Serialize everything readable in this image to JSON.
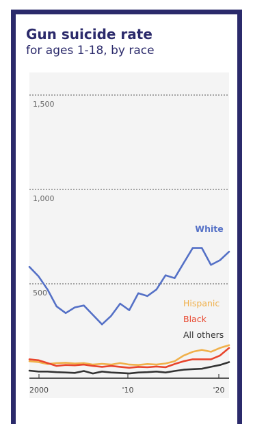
{
  "title": "Gun suicide rate",
  "subtitle": "for ages 1-18, by race",
  "colors": {
    "frame": "#2b2a6b",
    "white": "#5470c6",
    "hispanic": "#f0b04a",
    "black": "#e8452c",
    "all_others": "#333333"
  },
  "chart_data": {
    "type": "line",
    "title": "Gun suicide rate",
    "subtitle": "for ages 1-18, by race",
    "xlabel": "",
    "ylabel": "",
    "x_ticks": [
      "2000",
      "'10",
      "'20"
    ],
    "y_ticks": [
      "500",
      "1,000",
      "1,500"
    ],
    "ylim": [
      0,
      1550
    ],
    "xlim": [
      1999,
      2021
    ],
    "grid": true,
    "legend": "inline labels on the right",
    "x": [
      1999,
      2000,
      2001,
      2002,
      2003,
      2004,
      2005,
      2006,
      2007,
      2008,
      2009,
      2010,
      2011,
      2012,
      2013,
      2014,
      2015,
      2016,
      2017,
      2018,
      2019,
      2020,
      2021
    ],
    "series": [
      {
        "name": "White",
        "color": "#5470c6",
        "values": [
          590,
          540,
          470,
          380,
          345,
          375,
          385,
          335,
          285,
          330,
          395,
          360,
          450,
          435,
          470,
          545,
          530,
          610,
          690,
          690,
          600,
          625,
          670
        ]
      },
      {
        "name": "Hispanic",
        "color": "#f0b04a",
        "values": [
          90,
          85,
          75,
          80,
          82,
          78,
          80,
          72,
          76,
          72,
          80,
          72,
          70,
          75,
          72,
          78,
          90,
          120,
          140,
          150,
          140,
          160,
          175
        ]
      },
      {
        "name": "Black",
        "color": "#e8452c",
        "values": [
          100,
          95,
          80,
          65,
          70,
          68,
          72,
          65,
          60,
          65,
          60,
          55,
          60,
          58,
          62,
          58,
          75,
          90,
          100,
          100,
          100,
          120,
          160
        ]
      },
      {
        "name": "All others",
        "color": "#333333",
        "values": [
          40,
          35,
          35,
          32,
          30,
          28,
          38,
          25,
          35,
          30,
          28,
          25,
          30,
          32,
          35,
          30,
          38,
          45,
          48,
          50,
          60,
          70,
          85
        ]
      }
    ]
  }
}
